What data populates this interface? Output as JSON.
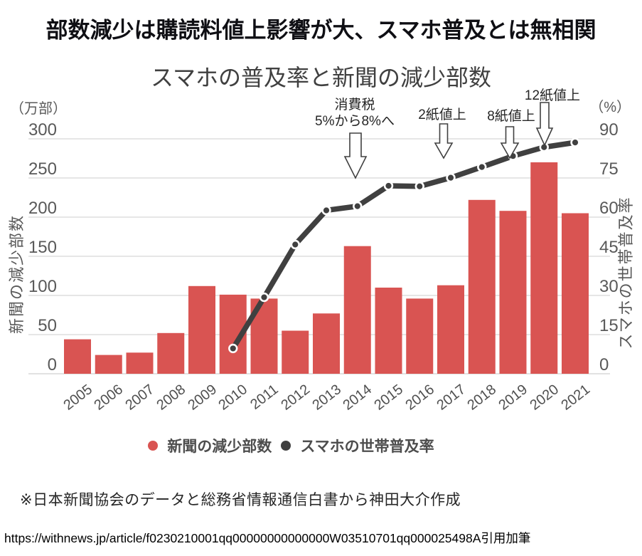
{
  "page": {
    "header_title": "部数減少は購読料値上影響が大、スマホ普及とは無相関",
    "source_note": "※日本新聞協会のデータと総務省情報通信白書から神田大介作成",
    "url_note": "https://withnews.jp/article/f0230210001qq00000000000000W03510701qq000025498A引用加筆"
  },
  "chart_data": {
    "type": "combo-bar-line",
    "title": "スマホの普及率と新聞の減少部数",
    "left_axis": {
      "unit": "（万部）",
      "title": "新聞の減少部数",
      "ticks": [
        300,
        250,
        200,
        150,
        100,
        50,
        0
      ],
      "range": [
        0,
        300
      ]
    },
    "right_axis": {
      "unit": "（%）",
      "title": "スマホの世帯普及率",
      "ticks": [
        90,
        75,
        60,
        45,
        30,
        15,
        0
      ],
      "range": [
        0,
        90
      ]
    },
    "categories": [
      "2005",
      "2006",
      "2007",
      "2008",
      "2009",
      "2010",
      "2011",
      "2012",
      "2013",
      "2014",
      "2015",
      "2016",
      "2017",
      "2018",
      "2019",
      "2020",
      "2021"
    ],
    "series": [
      {
        "name": "新聞の減少部数",
        "type": "bar",
        "axis": "left",
        "color": "#d95452",
        "values": [
          44,
          24,
          27,
          52,
          112,
          101,
          96,
          55,
          77,
          163,
          110,
          96,
          113,
          222,
          208,
          270,
          205
        ]
      },
      {
        "name": "スマホの世帯普及率",
        "type": "line",
        "axis": "right",
        "color": "#404040",
        "values": [
          null,
          null,
          null,
          null,
          null,
          9.7,
          29.3,
          49.5,
          62.6,
          64.2,
          72.0,
          71.8,
          75.1,
          79.2,
          83.4,
          86.8,
          88.6
        ]
      }
    ],
    "annotations": [
      {
        "lines": [
          "消費税",
          "5%から8%へ"
        ],
        "target_year": "2014"
      },
      {
        "lines": [
          "2紙値上"
        ],
        "target_year": "2017"
      },
      {
        "lines": [
          "8紙値上"
        ],
        "target_year": "2019"
      },
      {
        "lines": [
          "12紙値上"
        ],
        "target_year": "2020"
      }
    ],
    "legend": [
      "新聞の減少部数",
      "スマホの世帯普及率"
    ],
    "grid": true,
    "legend_position": "bottom"
  },
  "style": {
    "bar_color": "#d95452",
    "line_color": "#404040",
    "grid_color": "#d8d8d8",
    "tick_color": "#595959"
  }
}
